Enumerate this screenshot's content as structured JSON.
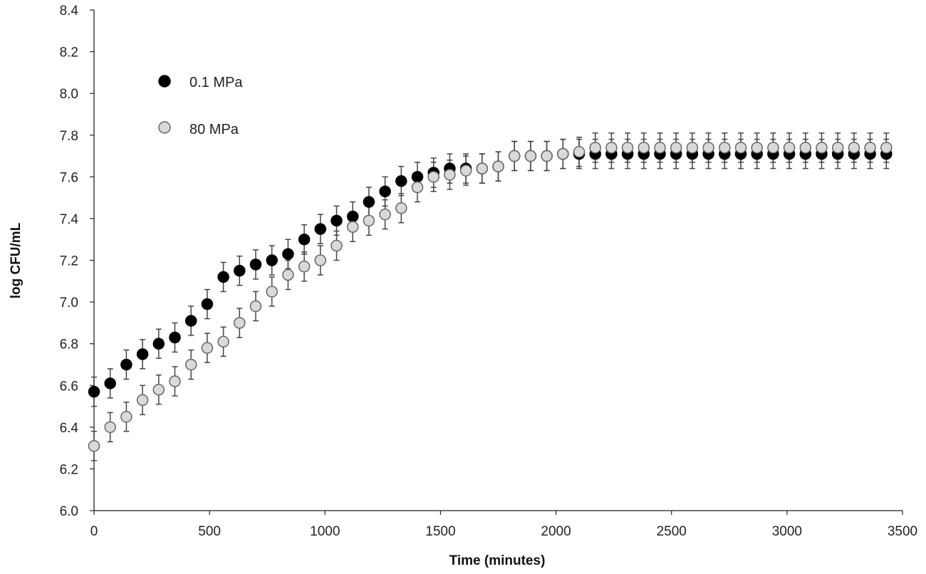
{
  "chart_data": {
    "type": "scatter",
    "title": "",
    "xlabel": "Time (minutes)",
    "ylabel": "log CFU/mL",
    "xlim": [
      0,
      3500
    ],
    "ylim": [
      6.0,
      8.4
    ],
    "xticks": [
      "0",
      "500",
      "1000",
      "1500",
      "2000",
      "2500",
      "3000",
      "3500"
    ],
    "yticks": [
      "6.0",
      "6.2",
      "6.4",
      "6.6",
      "6.8",
      "7.0",
      "7.2",
      "7.4",
      "7.6",
      "7.8",
      "8.0",
      "8.2",
      "8.4"
    ],
    "grid": false,
    "legend_position": "top-left",
    "error_bars": true,
    "series": [
      {
        "name": "0.1 MPa",
        "marker_color": "#000000",
        "marker_stroke": "#000000",
        "error": 0.07,
        "x": [
          0,
          70,
          140,
          210,
          280,
          350,
          420,
          490,
          560,
          630,
          700,
          770,
          840,
          910,
          980,
          1050,
          1120,
          1190,
          1260,
          1330,
          1400,
          1470,
          1540,
          1610,
          1680,
          1750,
          1820,
          1890,
          1960,
          2030,
          2100,
          2170,
          2240,
          2310,
          2380,
          2450,
          2520,
          2590,
          2660,
          2730,
          2800,
          2870,
          2940,
          3010,
          3080,
          3150,
          3220,
          3290,
          3360,
          3430
        ],
        "y": [
          6.57,
          6.61,
          6.7,
          6.75,
          6.8,
          6.83,
          6.91,
          6.99,
          7.12,
          7.15,
          7.18,
          7.2,
          7.23,
          7.3,
          7.35,
          7.39,
          7.41,
          7.48,
          7.53,
          7.58,
          7.6,
          7.62,
          7.64,
          7.64,
          7.64,
          7.65,
          7.7,
          7.7,
          7.7,
          7.71,
          7.71,
          7.71,
          7.71,
          7.71,
          7.71,
          7.71,
          7.71,
          7.71,
          7.71,
          7.71,
          7.71,
          7.71,
          7.71,
          7.71,
          7.71,
          7.71,
          7.71,
          7.71,
          7.71,
          7.71
        ]
      },
      {
        "name": "80 MPa",
        "marker_color": "#d9d9d9",
        "marker_stroke": "#666666",
        "error": 0.07,
        "x": [
          0,
          70,
          140,
          210,
          280,
          350,
          420,
          490,
          560,
          630,
          700,
          770,
          840,
          910,
          980,
          1050,
          1120,
          1190,
          1260,
          1330,
          1400,
          1470,
          1540,
          1610,
          1680,
          1750,
          1820,
          1890,
          1960,
          2030,
          2100,
          2170,
          2240,
          2310,
          2380,
          2450,
          2520,
          2590,
          2660,
          2730,
          2800,
          2870,
          2940,
          3010,
          3080,
          3150,
          3220,
          3290,
          3360,
          3430
        ],
        "y": [
          6.31,
          6.4,
          6.45,
          6.53,
          6.58,
          6.62,
          6.7,
          6.78,
          6.81,
          6.9,
          6.98,
          7.05,
          7.13,
          7.17,
          7.2,
          7.27,
          7.36,
          7.39,
          7.42,
          7.45,
          7.55,
          7.6,
          7.61,
          7.63,
          7.64,
          7.65,
          7.7,
          7.7,
          7.7,
          7.71,
          7.72,
          7.74,
          7.74,
          7.74,
          7.74,
          7.74,
          7.74,
          7.74,
          7.74,
          7.74,
          7.74,
          7.74,
          7.74,
          7.74,
          7.74,
          7.74,
          7.74,
          7.74,
          7.74,
          7.74
        ]
      }
    ]
  }
}
